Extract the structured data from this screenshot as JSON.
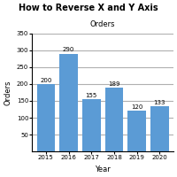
{
  "chart_data": {
    "type": "bar",
    "title": "How to Reverse X and Y Axis",
    "subtitle": "Orders",
    "xlabel": "Year",
    "ylabel": "Orders",
    "categories": [
      "2015",
      "2016",
      "2017",
      "2018",
      "2019",
      "2020"
    ],
    "values": [
      200,
      290,
      155,
      189,
      120,
      133
    ],
    "color": "#5B9BD5",
    "ylim": [
      0,
      350
    ],
    "yticks": [
      50,
      100,
      150,
      200,
      250,
      300,
      350
    ],
    "grid": true,
    "data_labels": true
  }
}
